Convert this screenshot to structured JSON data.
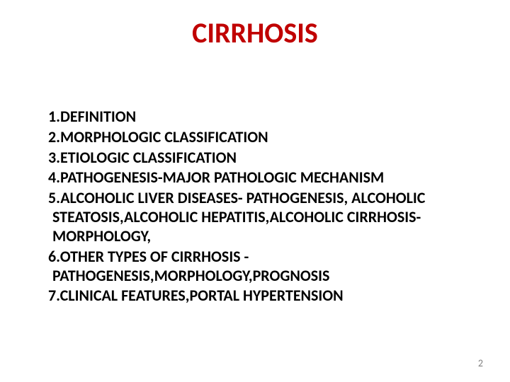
{
  "title": {
    "text": "CIRRHOSIS",
    "color": "#c00000",
    "fontsize": 40
  },
  "body": {
    "color": "#000000",
    "fontsize": 22,
    "items": [
      "1.DEFINITION",
      "2.MORPHOLOGIC CLASSIFICATION",
      "3.ETIOLOGIC CLASSIFICATION",
      "4.PATHOGENESIS-MAJOR PATHOLOGIC MECHANISM",
      "5.ALCOHOLIC LIVER DISEASES- PATHOGENESIS, ALCOHOLIC STEATOSIS,ALCOHOLIC HEPATITIS,ALCOHOLIC CIRRHOSIS-MORPHOLOGY,",
      "6.OTHER TYPES OF CIRRHOSIS -PATHOGENESIS,MORPHOLOGY,PROGNOSIS",
      "7.CLINICAL FEATURES,PORTAL HYPERTENSION"
    ]
  },
  "pagenum": {
    "text": "2",
    "color": "#808080",
    "fontsize": 14
  },
  "background_color": "#ffffff"
}
